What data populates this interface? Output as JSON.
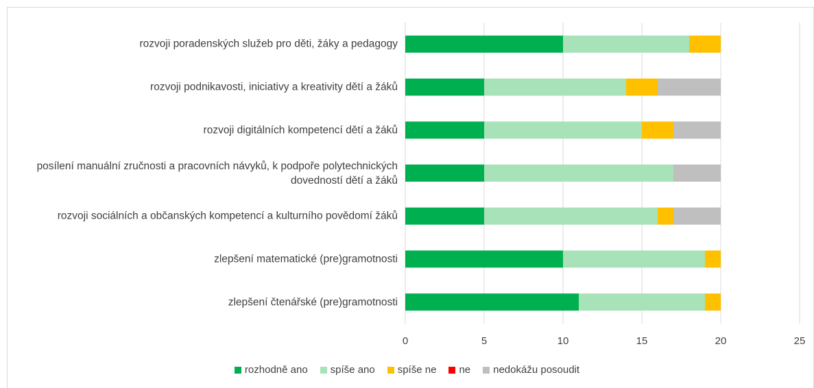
{
  "chart_data": {
    "type": "stacked_bar_horizontal",
    "categories": [
      "rozvoji poradenských služeb pro děti, žáky a pedagogy",
      "rozvoji podnikavosti, iniciativy a kreativity dětí a žáků",
      "rozvoji digitálních kompetencí dětí a žáků",
      "posílení manuální zručnosti a pracovních návyků, k podpoře polytechnických dovedností dětí a žáků",
      "rozvoji sociálních a občanských kompetencí a kulturního povědomí žáků",
      "zlepšení matematické (pre)gramotnosti",
      "zlepšení čtenářské (pre)gramotnosti"
    ],
    "series": [
      {
        "name": "rozhodně ano",
        "color": "#00b050",
        "values": [
          10,
          5,
          5,
          5,
          5,
          10,
          11
        ]
      },
      {
        "name": "spíše ano",
        "color": "#a8e2b8",
        "values": [
          8,
          9,
          10,
          12,
          11,
          9,
          8
        ]
      },
      {
        "name": "spíše ne",
        "color": "#ffc000",
        "values": [
          2,
          2,
          2,
          0,
          1,
          1,
          1
        ]
      },
      {
        "name": "ne",
        "color": "#ff0000",
        "values": [
          0,
          0,
          0,
          0,
          0,
          0,
          0
        ]
      },
      {
        "name": "nedokážu posoudit",
        "color": "#bfbfbf",
        "values": [
          0,
          4,
          3,
          3,
          3,
          0,
          0
        ]
      }
    ],
    "xlim": [
      0,
      25
    ],
    "xticks": [
      0,
      5,
      10,
      15,
      20,
      25
    ],
    "grid": true,
    "legend": "bottom"
  }
}
